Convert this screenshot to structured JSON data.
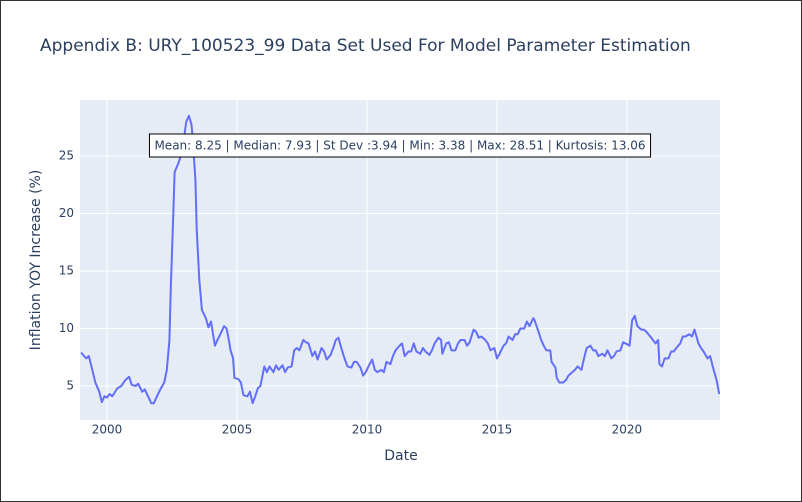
{
  "chart_data": {
    "type": "line",
    "title": "Appendix B: URY_100523_99 Data Set Used For Model Parameter Estimation",
    "xlabel": "Date",
    "ylabel": "Inflation YOY Increase (%)",
    "annotation": "Mean: 8.25 | Median: 7.93 | St Dev :3.94 | Min: 3.38 | Max: 28.51 | Kurtosis: 13.06",
    "color": "#636efa",
    "grid": true,
    "xlim": [
      1998.96,
      2023.58
    ],
    "xticks": [
      2000,
      2005,
      2010,
      2015,
      2020
    ],
    "ylim": [
      2.04,
      29.87
    ],
    "yticks": [
      5,
      10,
      15,
      20,
      25
    ],
    "x": [
      1999.0,
      1999.2,
      1999.3,
      1999.4,
      1999.55,
      1999.7,
      1999.8,
      1999.9,
      2000.0,
      2000.1,
      2000.2,
      2000.4,
      2000.55,
      2000.7,
      2000.85,
      2000.95,
      2001.1,
      2001.2,
      2001.35,
      2001.45,
      2001.6,
      2001.7,
      2001.8,
      2001.9,
      2002.05,
      2002.2,
      2002.3,
      2002.4,
      2002.45,
      2002.55,
      2002.6,
      2002.75,
      2002.85,
      2002.95,
      2003.05,
      2003.15,
      2003.25,
      2003.3,
      2003.4,
      2003.45,
      2003.55,
      2003.65,
      2003.8,
      2003.9,
      2004.0,
      2004.1,
      2004.15,
      2004.25,
      2004.4,
      2004.5,
      2004.6,
      2004.7,
      2004.75,
      2004.85,
      2004.9,
      2005.05,
      2005.15,
      2005.25,
      2005.4,
      2005.5,
      2005.6,
      2005.7,
      2005.8,
      2005.9,
      2006.05,
      2006.15,
      2006.25,
      2006.4,
      2006.5,
      2006.6,
      2006.75,
      2006.85,
      2006.95,
      2007.1,
      2007.2,
      2007.3,
      2007.4,
      2007.55,
      2007.65,
      2007.75,
      2007.9,
      2008.0,
      2008.1,
      2008.25,
      2008.35,
      2008.45,
      2008.6,
      2008.7,
      2008.8,
      2008.9,
      2009.05,
      2009.15,
      2009.25,
      2009.4,
      2009.5,
      2009.6,
      2009.75,
      2009.85,
      2009.95,
      2010.1,
      2010.2,
      2010.3,
      2010.4,
      2010.55,
      2010.65,
      2010.75,
      2010.9,
      2011.0,
      2011.1,
      2011.25,
      2011.35,
      2011.45,
      2011.6,
      2011.7,
      2011.8,
      2011.9,
      2012.05,
      2012.15,
      2012.25,
      2012.4,
      2012.5,
      2012.6,
      2012.75,
      2012.85,
      2012.9,
      2013.05,
      2013.15,
      2013.25,
      2013.4,
      2013.5,
      2013.6,
      2013.75,
      2013.85,
      2013.95,
      2014.1,
      2014.2,
      2014.3,
      2014.4,
      2014.55,
      2014.65,
      2014.75,
      2014.9,
      2015.0,
      2015.1,
      2015.25,
      2015.35,
      2015.45,
      2015.6,
      2015.7,
      2015.8,
      2015.9,
      2016.05,
      2016.15,
      2016.25,
      2016.4,
      2016.45,
      2016.6,
      2016.7,
      2016.8,
      2016.9,
      2017.05,
      2017.1,
      2017.25,
      2017.3,
      2017.4,
      2017.55,
      2017.65,
      2017.75,
      2017.9,
      2018.0,
      2018.1,
      2018.25,
      2018.35,
      2018.45,
      2018.6,
      2018.7,
      2018.8,
      2018.9,
      2019.05,
      2019.15,
      2019.25,
      2019.4,
      2019.5,
      2019.6,
      2019.75,
      2019.85,
      2019.95,
      2020.1,
      2020.2,
      2020.3,
      2020.4,
      2020.55,
      2020.65,
      2020.75,
      2020.9,
      2021.0,
      2021.1,
      2021.2,
      2021.25,
      2021.35,
      2021.45,
      2021.6,
      2021.7,
      2021.8,
      2021.9,
      2022.05,
      2022.15,
      2022.25,
      2022.4,
      2022.5,
      2022.6,
      2022.75,
      2022.85,
      2022.95,
      2023.1,
      2023.2,
      2023.3,
      2023.45,
      2023.55
    ],
    "values": [
      7.9,
      7.4,
      7.6,
      6.7,
      5.3,
      4.5,
      3.6,
      4.1,
      4.0,
      4.3,
      4.1,
      4.8,
      5.0,
      5.5,
      5.8,
      5.1,
      5.0,
      5.2,
      4.5,
      4.7,
      4.0,
      3.5,
      3.5,
      4.0,
      4.7,
      5.3,
      6.4,
      9.0,
      13.3,
      20.0,
      23.6,
      24.4,
      25.1,
      26.4,
      28.0,
      28.5,
      27.7,
      26.4,
      22.9,
      18.6,
      14.2,
      11.6,
      10.9,
      10.1,
      10.6,
      9.2,
      8.5,
      9.0,
      9.7,
      10.2,
      10.0,
      8.8,
      8.1,
      7.4,
      5.7,
      5.6,
      5.3,
      4.2,
      4.1,
      4.5,
      3.5,
      4.1,
      4.8,
      5.0,
      6.7,
      6.2,
      6.7,
      6.2,
      6.8,
      6.4,
      6.8,
      6.2,
      6.6,
      6.7,
      8.1,
      8.3,
      8.1,
      9.0,
      8.8,
      8.7,
      7.6,
      8.0,
      7.3,
      8.3,
      8.0,
      7.3,
      7.7,
      8.3,
      9.0,
      9.2,
      8.0,
      7.3,
      6.7,
      6.6,
      7.1,
      7.1,
      6.6,
      5.9,
      6.2,
      6.9,
      7.3,
      6.4,
      6.2,
      6.4,
      6.2,
      7.1,
      6.9,
      7.6,
      8.1,
      8.5,
      8.7,
      7.6,
      8.0,
      8.0,
      8.7,
      8.0,
      7.8,
      8.3,
      8.0,
      7.7,
      8.1,
      8.7,
      9.2,
      9.0,
      7.8,
      8.7,
      8.8,
      8.1,
      8.1,
      8.7,
      9.0,
      9.0,
      8.5,
      8.8,
      9.9,
      9.7,
      9.2,
      9.3,
      9.0,
      8.7,
      8.1,
      8.3,
      7.4,
      7.8,
      8.5,
      8.7,
      9.3,
      9.0,
      9.5,
      9.5,
      10.0,
      10.0,
      10.6,
      10.2,
      10.9,
      10.7,
      9.7,
      9.0,
      8.5,
      8.1,
      8.1,
      7.1,
      6.6,
      5.7,
      5.3,
      5.3,
      5.5,
      5.9,
      6.2,
      6.4,
      6.7,
      6.4,
      7.4,
      8.3,
      8.5,
      8.1,
      8.1,
      7.6,
      7.8,
      7.6,
      8.1,
      7.4,
      7.6,
      8.0,
      8.1,
      8.8,
      8.7,
      8.5,
      10.7,
      11.1,
      10.2,
      9.9,
      9.9,
      9.7,
      9.3,
      9.0,
      8.7,
      9.0,
      6.9,
      6.7,
      7.4,
      7.4,
      8.0,
      8.0,
      8.3,
      8.7,
      9.3,
      9.3,
      9.5,
      9.3,
      9.9,
      8.7,
      8.3,
      8.0,
      7.4,
      7.6,
      6.7,
      5.5,
      4.3
    ]
  }
}
